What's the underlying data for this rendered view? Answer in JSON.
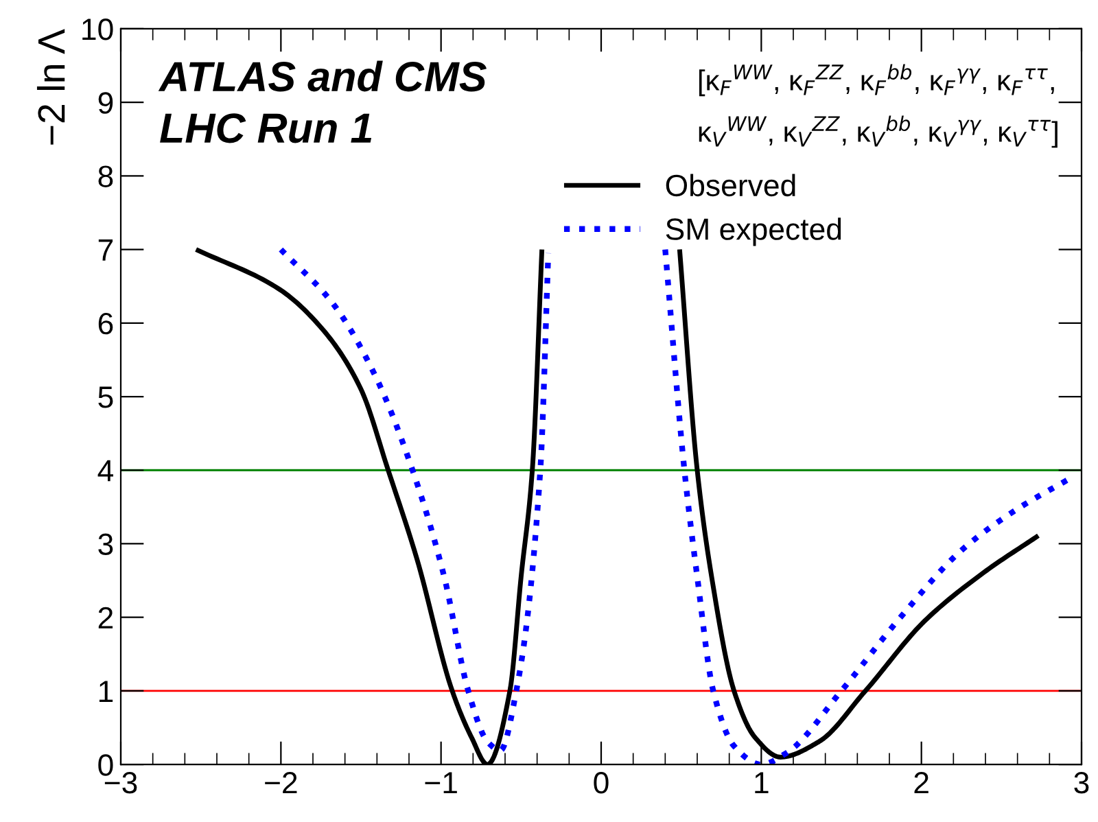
{
  "chart_data": {
    "type": "line",
    "ylabel": "−2 ln Λ",
    "annotations": [
      "ATLAS and CMS",
      "LHC Run 1",
      "[κ$_{F}$$^{WW}$, κ$_{F}$$^{ZZ}$, κ$_{F}$$^{bb}$, κ$_{F}$$^{γγ}$, κ$_{F}$$^{ττ}$,",
      "κ$_{V}$$^{WW}$, κ$_{V}$$^{ZZ}$, κ$_{V}$$^{bb}$, κ$_{V}$$^{γγ}$, κ$_{V}$$^{ττ}$]"
    ],
    "series": [
      {
        "name": "Observed",
        "color": "#000000",
        "line_style": "solid",
        "x": [
          -2.53,
          -2.01,
          -1.73,
          -1.5,
          -1.33,
          -1.15,
          -0.93,
          -0.81,
          -0.71,
          -0.57,
          -0.5,
          -0.43,
          -0.37,
          0.06,
          0.49,
          0.6,
          0.69,
          0.83,
          0.96,
          1.12,
          1.36,
          1.65,
          2.02,
          2.39,
          2.73
        ],
        "values": [
          7.0,
          6.46,
          5.89,
          5.1,
          4.0,
          2.79,
          1.0,
          0.37,
          0.0,
          1.0,
          2.55,
          4.0,
          7.0,
          null,
          7.0,
          4.0,
          2.55,
          1.0,
          0.37,
          0.1,
          0.31,
          1.0,
          1.95,
          2.61,
          3.11
        ]
      },
      {
        "name": "SM expected",
        "color": "#0000ff",
        "line_style": "dotted",
        "x": [
          -2.0,
          -1.67,
          -1.41,
          -1.17,
          -0.98,
          -0.83,
          -0.71,
          -0.63,
          -0.53,
          -0.38,
          -0.33,
          0.03,
          0.4,
          0.52,
          0.6,
          0.7,
          0.83,
          1.0,
          1.16,
          1.5,
          1.85,
          2.25,
          2.59,
          2.93
        ],
        "values": [
          7.0,
          6.25,
          5.28,
          3.95,
          2.55,
          1.0,
          0.31,
          0.19,
          1.0,
          4.0,
          6.95,
          null,
          7.0,
          4.0,
          2.55,
          1.0,
          0.25,
          0.0,
          0.16,
          1.0,
          1.95,
          2.91,
          3.46,
          3.89
        ]
      }
    ],
    "ref_lines": [
      {
        "axis": "y",
        "value": 1,
        "color": "#ff0000"
      },
      {
        "axis": "y",
        "value": 4,
        "color": "#008000"
      }
    ],
    "xlim": [
      -3,
      3
    ],
    "ylim": [
      0,
      10
    ],
    "xticks": [
      {
        "value": -3,
        "label": "−3"
      },
      {
        "value": -2,
        "label": "−2"
      },
      {
        "value": -1,
        "label": "−1"
      },
      0,
      1,
      2,
      3
    ],
    "yticks": [
      0,
      1,
      2,
      3,
      4,
      5,
      6,
      7,
      8,
      9,
      10
    ],
    "grid": false,
    "legend": "top right",
    "marker": "none"
  }
}
